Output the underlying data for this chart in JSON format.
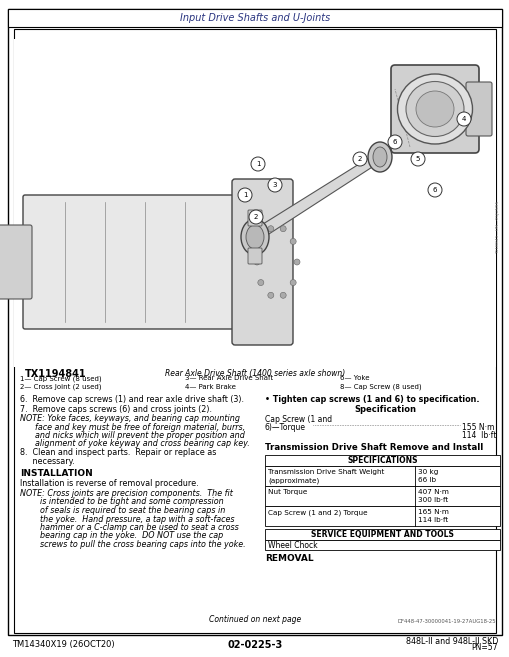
{
  "title_header": "Input Drive Shafts and U-Joints",
  "page_bg": "#ffffff",
  "border_color": "#000000",
  "text_color": "#000000",
  "figure_caption": "TX1194841",
  "figure_subcaption": "Rear Axle Drive Shaft (1400 series axle shown)",
  "legend_cols": [
    [
      "1— Cap Screw (8 used)",
      "2— Cross Joint (2 used)"
    ],
    [
      "3— Rear Axle Drive Shaft",
      "4— Park Brake"
    ],
    [
      "6— Yoke",
      "8— Cap Screw (8 used)"
    ]
  ],
  "body_text": [
    {
      "type": "step",
      "text": "6.  Remove cap screws (1) and rear axle drive shaft (3)."
    },
    {
      "type": "step",
      "text": "7.  Remove caps screws (6) and cross joints (2)."
    },
    {
      "type": "note_label",
      "text": "NOTE: Yoke faces, keyways, and bearing cap mounting"
    },
    {
      "type": "note_cont",
      "text": "      face and key must be free of foreign material, burrs,"
    },
    {
      "type": "note_cont",
      "text": "      and nicks which will prevent the proper position and"
    },
    {
      "type": "note_cont",
      "text": "      alignment of yoke keyway and cross bearing cap key."
    },
    {
      "type": "step",
      "text": "8.  Clean and inspect parts.  Repair or replace as"
    },
    {
      "type": "step_cont",
      "text": "     necessary."
    },
    {
      "type": "heading",
      "text": "INSTALLATION"
    },
    {
      "type": "body",
      "text": "Installation is reverse of removal procedure."
    },
    {
      "type": "note_label",
      "text": "NOTE: Cross joints are precision components.  The fit"
    },
    {
      "type": "note_cont",
      "text": "        is intended to be tight and some compression"
    },
    {
      "type": "note_cont",
      "text": "        of seals is required to seat the bearing caps in"
    },
    {
      "type": "note_cont",
      "text": "        the yoke.  Hand pressure, a tap with a soft-faces"
    },
    {
      "type": "note_cont",
      "text": "        hammer or a C-clamp can be used to seat a cross"
    },
    {
      "type": "note_cont",
      "text": "        bearing cap in the yoke.  DO NOT use the cap"
    },
    {
      "type": "note_cont",
      "text": "        screws to pull the cross bearing caps into the yoke."
    }
  ],
  "right_bullet": "• Tighten cap screws (1 and 6) to specification.",
  "spec_heading": "Specification",
  "spec_label1": "Cap Screw (1 and",
  "spec_label2": "6)—Torque",
  "spec_dots": "...............................................",
  "spec_val1": "155 N·m",
  "spec_val2": "114  lb·ft",
  "section_heading": "Transmission Drive Shaft Remove and Install",
  "table_heading": "SPECIFICATIONS",
  "table_rows": [
    {
      "label": "Transmission Drive Shaft Weight\n(approximate)",
      "value": "30 kg\n66 lb"
    },
    {
      "label": "Nut Torque",
      "value": "407 N·m\n300 lb·ft"
    },
    {
      "label": "Cap Screw (1 and 2) Torque",
      "value": "165 N·m\n114 lb·ft"
    }
  ],
  "service_heading": "SERVICE EQUIPMENT AND TOOLS",
  "service_item": "Wheel Chock",
  "removal_heading": "REMOVAL",
  "continued_text": "Continued on next page",
  "doc_number": "DF448-47-30000041-19-27AUG18-25",
  "footer_left": "TM14340X19 (26OCT20)",
  "footer_center": "02-0225-3",
  "footer_right": "848L-II and 948L-II SKD",
  "footer_right2": "PN=57"
}
